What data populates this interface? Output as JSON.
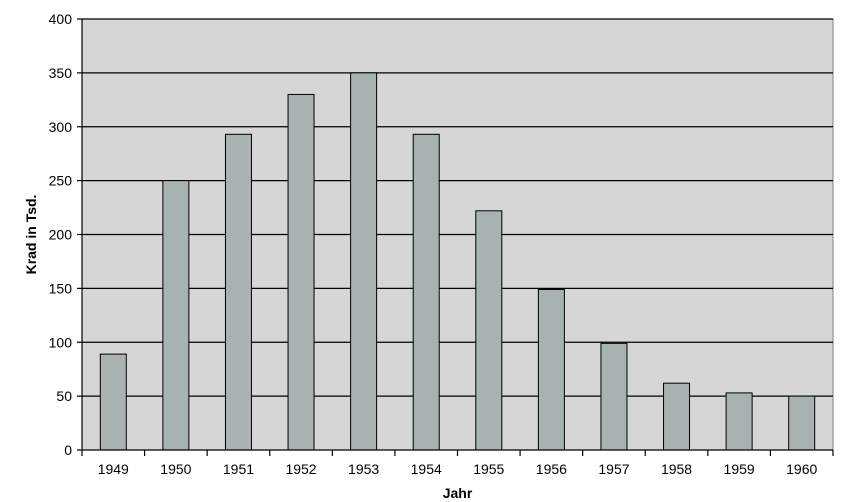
{
  "colors": {
    "plot_background": "#d6d6d6",
    "bar_fill": "#a8b3b1",
    "bar_stroke": "#000000",
    "gridline": "#000000"
  },
  "chart_data": {
    "type": "bar",
    "xlabel": "Jahr",
    "ylabel": "Krad in Tsd.",
    "categories": [
      "1949",
      "1950",
      "1951",
      "1952",
      "1953",
      "1954",
      "1955",
      "1956",
      "1957",
      "1958",
      "1959",
      "1960"
    ],
    "values": [
      89,
      250,
      293,
      330,
      350,
      293,
      222,
      149,
      99,
      62,
      53,
      50
    ],
    "ylim": [
      0,
      400
    ],
    "yticks": [
      0,
      50,
      100,
      150,
      200,
      250,
      300,
      350,
      400
    ],
    "ytick_labels": [
      "0",
      "50",
      "100",
      "150",
      "200",
      "250",
      "300",
      "350",
      "400"
    ],
    "grid": true,
    "legend": "none"
  }
}
